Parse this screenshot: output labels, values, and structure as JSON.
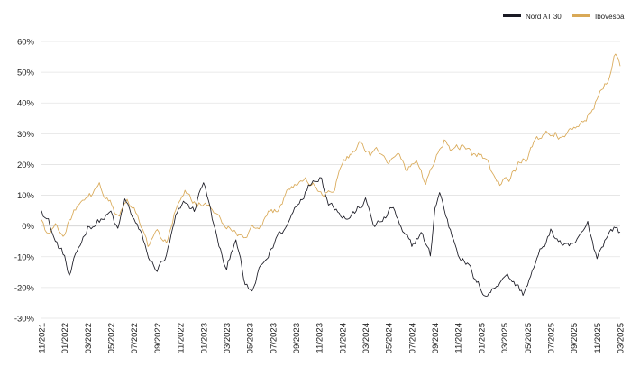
{
  "chart_data": {
    "type": "line",
    "title": "",
    "xlabel": "",
    "ylabel": "",
    "ylim": [
      -30,
      60
    ],
    "yticks": [
      -30,
      -20,
      -10,
      0,
      10,
      20,
      30,
      40,
      50,
      60
    ],
    "ytick_labels": [
      "-30%",
      "-20%",
      "-10%",
      "0%",
      "10%",
      "20%",
      "30%",
      "40%",
      "50%",
      "60%"
    ],
    "xticks": [
      "11/2021",
      "01/2022",
      "03/2022",
      "05/2022",
      "07/2022",
      "09/2022",
      "11/2022",
      "01/2023",
      "03/2023",
      "05/2023",
      "07/2023",
      "09/2023",
      "11/2023",
      "01/2024",
      "03/2024",
      "05/2024",
      "07/2024",
      "09/2024",
      "11/2024",
      "01/2025",
      "03/2025",
      "05/2025",
      "07/2025",
      "09/2025",
      "11/2025",
      "03/2025"
    ],
    "grid": true,
    "legend_position": "top-right",
    "series": [
      {
        "name": "Nord AT 30",
        "color": "#1a1a24",
        "points": [
          [
            0,
            6
          ],
          [
            0.3,
            2
          ],
          [
            0.6,
            -5
          ],
          [
            1.0,
            -10
          ],
          [
            1.2,
            -17
          ],
          [
            1.6,
            -8
          ],
          [
            2.0,
            0
          ],
          [
            2.5,
            2
          ],
          [
            3.0,
            4
          ],
          [
            3.3,
            -2
          ],
          [
            3.6,
            8
          ],
          [
            4.0,
            2
          ],
          [
            4.4,
            -5
          ],
          [
            4.7,
            -12
          ],
          [
            5.0,
            -14
          ],
          [
            5.4,
            -10
          ],
          [
            5.8,
            2
          ],
          [
            6.2,
            7
          ],
          [
            6.6,
            5
          ],
          [
            7.0,
            15
          ],
          [
            7.3,
            5
          ],
          [
            7.6,
            -5
          ],
          [
            8.0,
            -15
          ],
          [
            8.4,
            -3
          ],
          [
            8.8,
            -20
          ],
          [
            9.1,
            -22
          ],
          [
            9.4,
            -15
          ],
          [
            9.8,
            -10
          ],
          [
            10.2,
            -3
          ],
          [
            10.6,
            0
          ],
          [
            11.0,
            7
          ],
          [
            11.4,
            12
          ],
          [
            11.8,
            16
          ],
          [
            12.1,
            17
          ],
          [
            12.4,
            8
          ],
          [
            12.8,
            6
          ],
          [
            13.2,
            3
          ],
          [
            13.6,
            5
          ],
          [
            14.0,
            8
          ],
          [
            14.4,
            0
          ],
          [
            14.8,
            2
          ],
          [
            15.2,
            6
          ],
          [
            15.6,
            -3
          ],
          [
            16.0,
            -7
          ],
          [
            16.4,
            -2
          ],
          [
            16.8,
            -10
          ],
          [
            17.0,
            6
          ],
          [
            17.2,
            11
          ],
          [
            17.6,
            0
          ],
          [
            18.0,
            -8
          ],
          [
            18.4,
            -12
          ],
          [
            18.8,
            -19
          ],
          [
            19.2,
            -22
          ],
          [
            19.6,
            -20
          ],
          [
            20.0,
            -15
          ],
          [
            20.4,
            -18
          ],
          [
            20.8,
            -22
          ],
          [
            21.2,
            -15
          ],
          [
            21.6,
            -8
          ],
          [
            22.0,
            -2
          ],
          [
            22.4,
            -5
          ],
          [
            22.8,
            -8
          ],
          [
            23.2,
            -5
          ],
          [
            23.6,
            0
          ],
          [
            24.0,
            -10
          ],
          [
            24.4,
            -3
          ],
          [
            24.8,
            0
          ],
          [
            25.0,
            -2
          ]
        ]
      },
      {
        "name": "Ibovespa",
        "color": "#d9a957",
        "points": [
          [
            0,
            2
          ],
          [
            0.3,
            -3
          ],
          [
            0.6,
            0
          ],
          [
            1.0,
            -2
          ],
          [
            1.4,
            5
          ],
          [
            2.0,
            8
          ],
          [
            2.5,
            12
          ],
          [
            2.9,
            9
          ],
          [
            3.3,
            3
          ],
          [
            3.7,
            7
          ],
          [
            4.0,
            5
          ],
          [
            4.3,
            0
          ],
          [
            4.6,
            -7
          ],
          [
            5.0,
            -3
          ],
          [
            5.4,
            -5
          ],
          [
            5.8,
            5
          ],
          [
            6.2,
            10
          ],
          [
            6.6,
            7
          ],
          [
            7.0,
            8
          ],
          [
            7.3,
            5
          ],
          [
            7.6,
            3
          ],
          [
            8.0,
            0
          ],
          [
            8.4,
            -3
          ],
          [
            8.8,
            -5
          ],
          [
            9.1,
            0
          ],
          [
            9.4,
            -3
          ],
          [
            9.8,
            3
          ],
          [
            10.2,
            5
          ],
          [
            10.6,
            12
          ],
          [
            11.0,
            14
          ],
          [
            11.4,
            15
          ],
          [
            11.8,
            13
          ],
          [
            12.2,
            10
          ],
          [
            12.6,
            12
          ],
          [
            13.0,
            20
          ],
          [
            13.4,
            24
          ],
          [
            13.8,
            26
          ],
          [
            14.2,
            22
          ],
          [
            14.6,
            24
          ],
          [
            15.0,
            20
          ],
          [
            15.4,
            22
          ],
          [
            15.8,
            18
          ],
          [
            16.2,
            21
          ],
          [
            16.6,
            14
          ],
          [
            17.0,
            22
          ],
          [
            17.4,
            28
          ],
          [
            17.8,
            24
          ],
          [
            18.2,
            26
          ],
          [
            18.6,
            22
          ],
          [
            19.0,
            24
          ],
          [
            19.4,
            18
          ],
          [
            19.8,
            13
          ],
          [
            20.2,
            15
          ],
          [
            20.6,
            20
          ],
          [
            21.0,
            22
          ],
          [
            21.4,
            28
          ],
          [
            21.8,
            30
          ],
          [
            22.2,
            31
          ],
          [
            22.6,
            28
          ],
          [
            23.0,
            30
          ],
          [
            23.4,
            34
          ],
          [
            23.8,
            38
          ],
          [
            24.2,
            44
          ],
          [
            24.6,
            50
          ],
          [
            24.8,
            56
          ],
          [
            25.0,
            52
          ]
        ]
      }
    ]
  }
}
